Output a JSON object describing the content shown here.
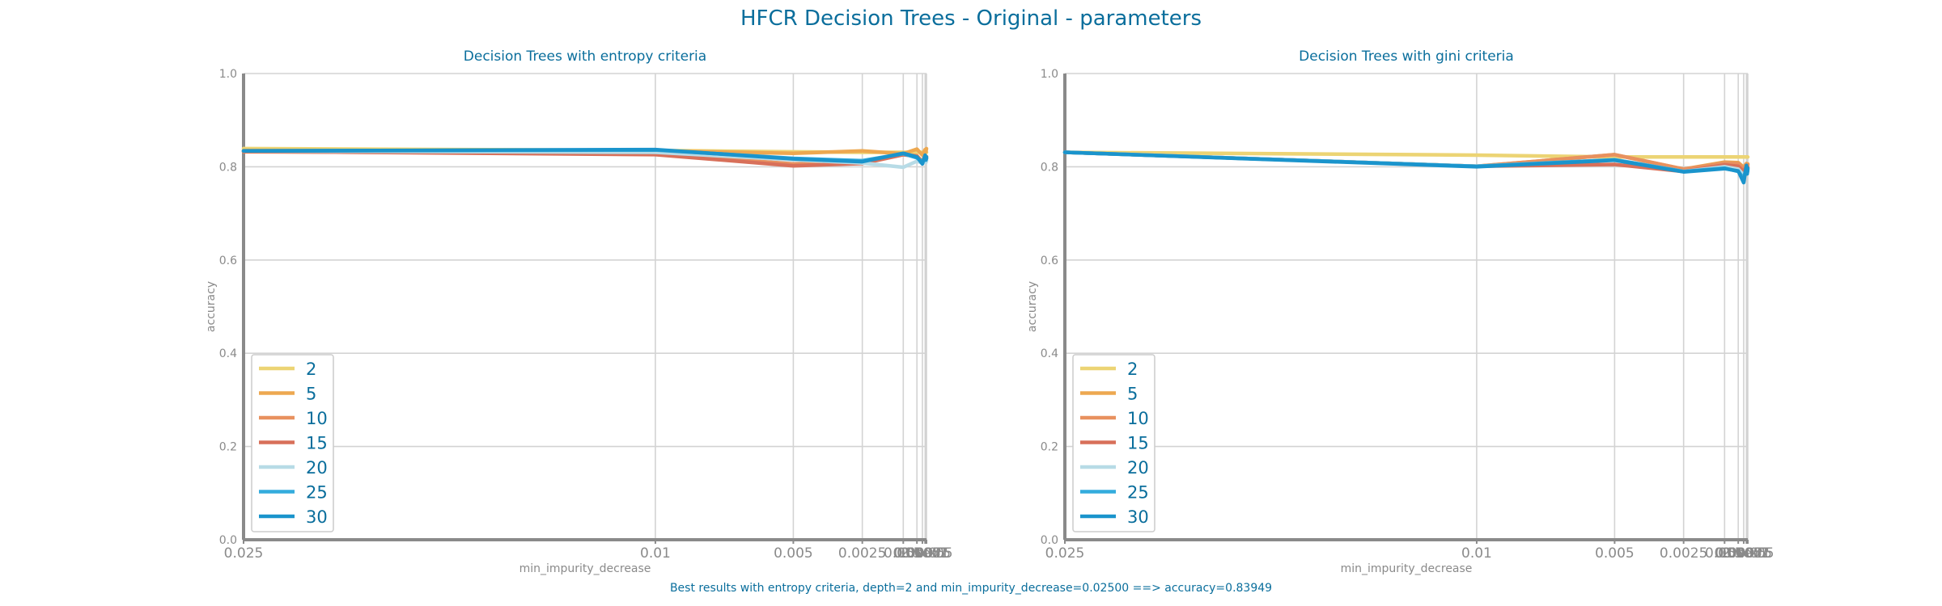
{
  "suptitle": "HFCR Decision Trees - Original - parameters",
  "footnote": "Best results with entropy criteria, depth=2 and min_impurity_decrease=0.02500 ==> accuracy=0.83949",
  "colors": {
    "text": "#0a6e9c",
    "axis": "#8a8a8a",
    "grid": "#d3d3d3",
    "series": [
      "#ecd474",
      "#eda850",
      "#e8915f",
      "#d8705a",
      "#b7dbe6",
      "#34acdd",
      "#1a94cc"
    ]
  },
  "chart_data": [
    {
      "type": "line",
      "title": "Decision Trees with entropy criteria",
      "xlabel": "min_impurity_decrease",
      "ylabel": "accuracy",
      "ylim": [
        0,
        1
      ],
      "yticks": [
        "0.0",
        "0.2",
        "0.4",
        "0.6",
        "0.8",
        "1.0"
      ],
      "x_scale": "categorical",
      "x": [
        "0.025",
        "0.01",
        "0.005",
        "0.0025",
        "0.001",
        "0.0005",
        "0.00025",
        "0.0001",
        "5e-05",
        "2.5e-05"
      ],
      "x_tick_labels": [
        "0.025",
        "0.01",
        "0.005",
        "0.0025",
        "0.001",
        "0.0005",
        "0.00025",
        "0.0001",
        "5e-05",
        "2.5e-05"
      ],
      "grid": true,
      "legend_position": "lower-left",
      "series": [
        {
          "name": "2",
          "values": [
            0.839,
            0.835,
            0.832,
            0.831,
            0.831,
            0.831,
            0.831,
            0.831,
            0.831,
            0.831
          ]
        },
        {
          "name": "5",
          "values": [
            0.835,
            0.834,
            0.829,
            0.834,
            0.828,
            0.838,
            0.825,
            0.837,
            0.832,
            0.839
          ]
        },
        {
          "name": "10",
          "values": [
            0.832,
            0.829,
            0.806,
            0.812,
            0.826,
            0.824,
            0.811,
            0.824,
            0.816,
            0.822
          ]
        },
        {
          "name": "15",
          "values": [
            0.833,
            0.826,
            0.802,
            0.807,
            0.826,
            0.822,
            0.809,
            0.822,
            0.814,
            0.818
          ]
        },
        {
          "name": "20",
          "values": [
            0.834,
            0.831,
            0.815,
            0.808,
            0.799,
            0.812,
            0.808,
            0.814,
            0.809,
            0.813
          ]
        },
        {
          "name": "25",
          "values": [
            0.834,
            0.836,
            0.818,
            0.813,
            0.828,
            0.819,
            0.811,
            0.82,
            0.814,
            0.818
          ]
        },
        {
          "name": "30",
          "values": [
            0.834,
            0.837,
            0.817,
            0.811,
            0.829,
            0.821,
            0.806,
            0.825,
            0.815,
            0.821
          ]
        }
      ]
    },
    {
      "type": "line",
      "title": "Decision Trees with gini criteria",
      "xlabel": "min_impurity_decrease",
      "ylabel": "accuracy",
      "ylim": [
        0,
        1
      ],
      "yticks": [
        "0.0",
        "0.2",
        "0.4",
        "0.6",
        "0.8",
        "1.0"
      ],
      "x_scale": "categorical",
      "x": [
        "0.025",
        "0.01",
        "0.005",
        "0.0025",
        "0.001",
        "0.0005",
        "0.00025",
        "0.0001",
        "5e-05",
        "2.5e-05"
      ],
      "x_tick_labels": [
        "0.025",
        "0.01",
        "0.005",
        "0.0025",
        "0.001",
        "0.0005",
        "0.00025",
        "0.0001",
        "5e-05",
        "2.5e-05"
      ],
      "grid": true,
      "legend_position": "lower-left",
      "series": [
        {
          "name": "2",
          "values": [
            0.831,
            0.825,
            0.821,
            0.821,
            0.821,
            0.821,
            0.821,
            0.821,
            0.821,
            0.821
          ]
        },
        {
          "name": "5",
          "values": [
            0.831,
            0.801,
            0.826,
            0.795,
            0.81,
            0.809,
            0.799,
            0.807,
            0.804,
            0.806
          ]
        },
        {
          "name": "10",
          "values": [
            0.831,
            0.801,
            0.826,
            0.795,
            0.808,
            0.807,
            0.796,
            0.805,
            0.802,
            0.804
          ]
        },
        {
          "name": "15",
          "values": [
            0.831,
            0.801,
            0.805,
            0.79,
            0.804,
            0.801,
            0.79,
            0.8,
            0.796,
            0.799
          ]
        },
        {
          "name": "20",
          "values": [
            0.831,
            0.801,
            0.815,
            0.79,
            0.8,
            0.795,
            0.782,
            0.792,
            0.788,
            0.791
          ]
        },
        {
          "name": "25",
          "values": [
            0.831,
            0.801,
            0.815,
            0.79,
            0.797,
            0.79,
            0.775,
            0.8,
            0.785,
            0.795
          ]
        },
        {
          "name": "30",
          "values": [
            0.831,
            0.8,
            0.814,
            0.789,
            0.796,
            0.791,
            0.766,
            0.803,
            0.785,
            0.797
          ]
        }
      ]
    }
  ]
}
